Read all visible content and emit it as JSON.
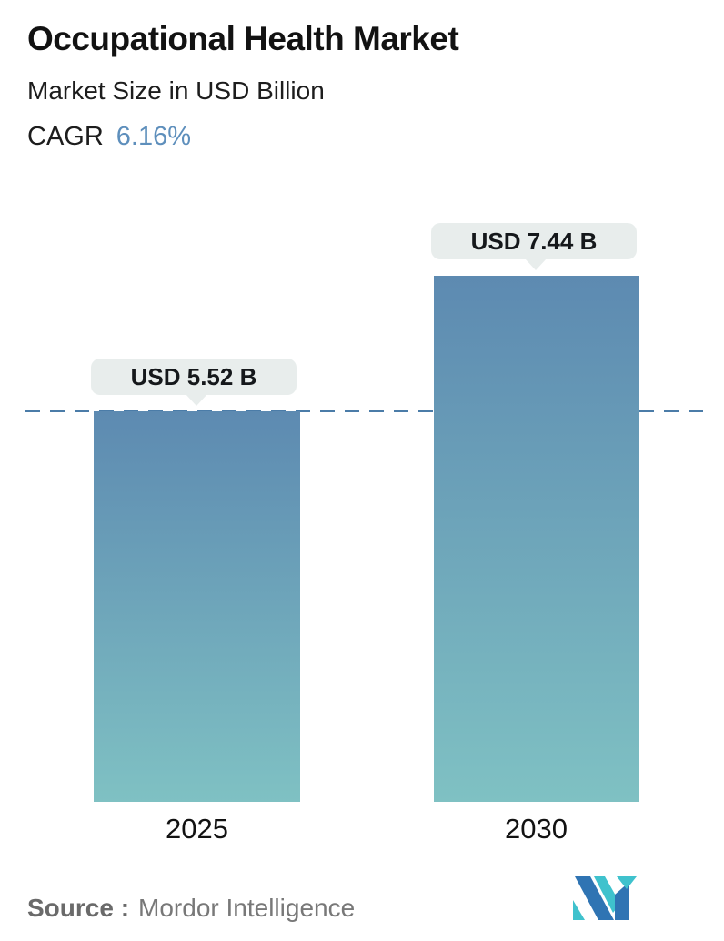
{
  "header": {
    "title": "Occupational Health Market",
    "subtitle": "Market Size in USD Billion",
    "cagr_label": "CAGR",
    "cagr_value": "6.16%"
  },
  "chart_data": {
    "type": "bar",
    "categories": [
      "2025",
      "2030"
    ],
    "values": [
      5.52,
      7.44
    ],
    "value_labels": [
      "USD 5.52 B",
      "USD 7.44 B"
    ],
    "title": "Occupational Health Market",
    "subtitle": "Market Size in USD Billion",
    "cagr": "6.16%",
    "ylabel": "Market Size in USD Billion",
    "ylim": [
      0,
      7.44
    ],
    "baseline_value": 5.52,
    "baseline_style": "dashed",
    "legend": "none",
    "grid": "off",
    "bar_gradient_top": "#5d8ab1",
    "bar_gradient_bottom": "#7fc1c3",
    "dashed_line_color": "#4b7ca8"
  },
  "footer": {
    "source_label": "Source :",
    "source_value": "Mordor Intelligence"
  },
  "colors": {
    "accent_blue": "#5e8fbc",
    "tooltip_bg": "#e8edec",
    "text_dark": "#121212",
    "text_gray": "#757575",
    "logo_blue": "#2f74b3",
    "logo_teal": "#3fc2cd"
  }
}
